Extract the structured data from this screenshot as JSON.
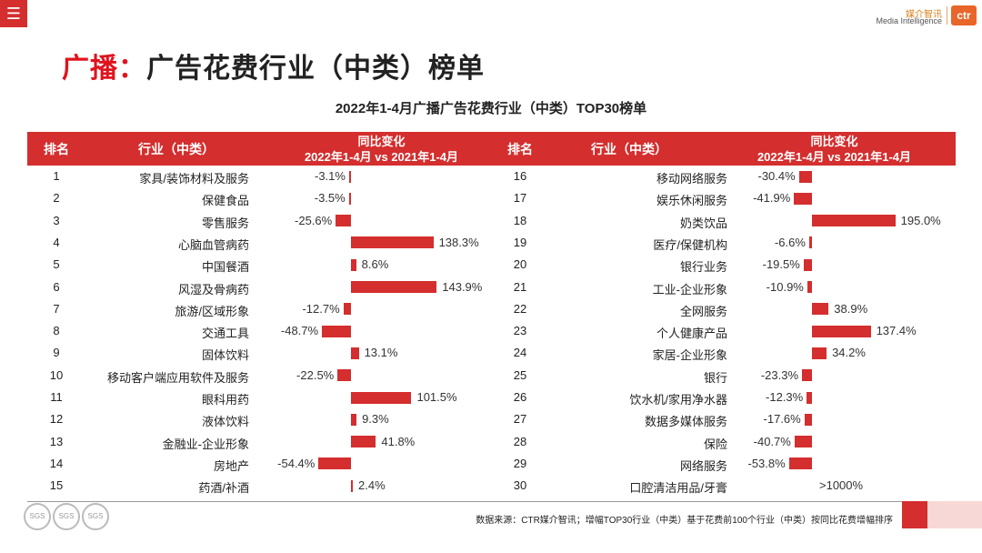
{
  "header": {
    "menu_glyph": "☰",
    "logo_cn": "媒介智讯",
    "logo_en": "Media Intelligence",
    "logo_mark": "ctr"
  },
  "title": {
    "accent": "广播：",
    "main": "广告花费行业（中类）榜单"
  },
  "chart_data": {
    "type": "table",
    "title": "2022年1-4月广播广告花费行业（中类）TOP30榜单",
    "columns": {
      "rank": "排名",
      "industry": "行业（中类）",
      "change_line1": "同比变化",
      "change_line2": "2022年1-4月 vs 2021年1-4月"
    },
    "rows": [
      {
        "rank": "1",
        "industry": "家具/装饰材料及服务",
        "value": -3.1,
        "label": "-3.1%"
      },
      {
        "rank": "2",
        "industry": "保健食品",
        "value": -3.5,
        "label": "-3.5%"
      },
      {
        "rank": "3",
        "industry": "零售服务",
        "value": -25.6,
        "label": "-25.6%"
      },
      {
        "rank": "4",
        "industry": "心脑血管病药",
        "value": 138.3,
        "label": "138.3%"
      },
      {
        "rank": "5",
        "industry": "中国餐酒",
        "value": 8.6,
        "label": "8.6%"
      },
      {
        "rank": "6",
        "industry": "风湿及骨病药",
        "value": 143.9,
        "label": "143.9%"
      },
      {
        "rank": "7",
        "industry": "旅游/区域形象",
        "value": -12.7,
        "label": "-12.7%"
      },
      {
        "rank": "8",
        "industry": "交通工具",
        "value": -48.7,
        "label": "-48.7%"
      },
      {
        "rank": "9",
        "industry": "固体饮料",
        "value": 13.1,
        "label": "13.1%"
      },
      {
        "rank": "10",
        "industry": "移动客户端应用软件及服务",
        "value": -22.5,
        "label": "-22.5%"
      },
      {
        "rank": "11",
        "industry": "眼科用药",
        "value": 101.5,
        "label": "101.5%"
      },
      {
        "rank": "12",
        "industry": "液体饮料",
        "value": 9.3,
        "label": "9.3%"
      },
      {
        "rank": "13",
        "industry": "金融业-企业形象",
        "value": 41.8,
        "label": "41.8%"
      },
      {
        "rank": "14",
        "industry": "房地产",
        "value": -54.4,
        "label": "-54.4%"
      },
      {
        "rank": "15",
        "industry": "药酒/补酒",
        "value": 2.4,
        "label": "2.4%"
      },
      {
        "rank": "16",
        "industry": "移动网络服务",
        "value": -30.4,
        "label": "-30.4%"
      },
      {
        "rank": "17",
        "industry": "娱乐休闲服务",
        "value": -41.9,
        "label": "-41.9%"
      },
      {
        "rank": "18",
        "industry": "奶类饮品",
        "value": 195.0,
        "label": "195.0%"
      },
      {
        "rank": "19",
        "industry": "医疗/保健机构",
        "value": -6.6,
        "label": "-6.6%"
      },
      {
        "rank": "20",
        "industry": "银行业务",
        "value": -19.5,
        "label": "-19.5%"
      },
      {
        "rank": "21",
        "industry": "工业-企业形象",
        "value": -10.9,
        "label": "-10.9%"
      },
      {
        "rank": "22",
        "industry": "全网服务",
        "value": 38.9,
        "label": "38.9%"
      },
      {
        "rank": "23",
        "industry": "个人健康产品",
        "value": 137.4,
        "label": "137.4%"
      },
      {
        "rank": "24",
        "industry": "家居-企业形象",
        "value": 34.2,
        "label": "34.2%"
      },
      {
        "rank": "25",
        "industry": "银行",
        "value": -23.3,
        "label": "-23.3%"
      },
      {
        "rank": "26",
        "industry": "饮水机/家用净水器",
        "value": -12.3,
        "label": "-12.3%"
      },
      {
        "rank": "27",
        "industry": "数据多媒体服务",
        "value": -17.6,
        "label": "-17.6%"
      },
      {
        "rank": "28",
        "industry": "保险",
        "value": -40.7,
        "label": "-40.7%"
      },
      {
        "rank": "29",
        "industry": "网络服务",
        "value": -53.8,
        "label": "-53.8%"
      },
      {
        "rank": "30",
        "industry": "口腔清洁用品/牙膏",
        "value": null,
        "label": ">1000%"
      }
    ]
  },
  "footer": {
    "note": "数据来源：CTR媒介智讯；增幅TOP30行业（中类）基于花费前100个行业（中类）按同比花费增幅排序",
    "badge_text": "SGS"
  },
  "colors": {
    "accent": "#d42e2e",
    "title_red": "#e0141e"
  }
}
